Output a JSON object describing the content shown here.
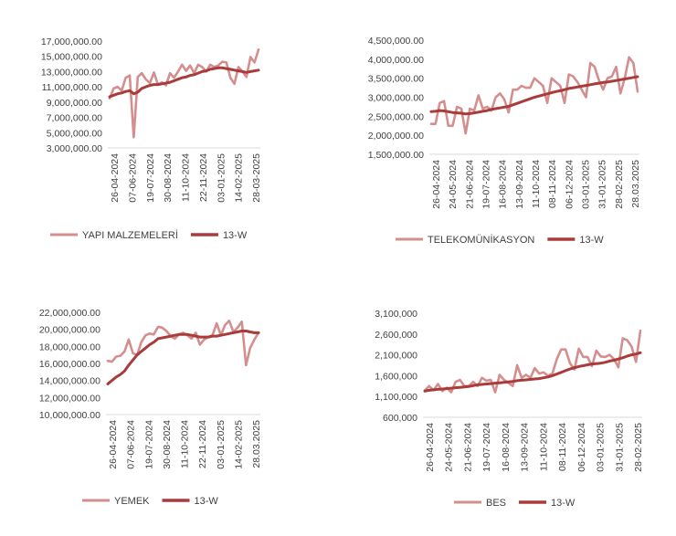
{
  "colors": {
    "series_light": "#d48e8e",
    "series_dark": "#a93b3b",
    "axis": "#d9d9d9",
    "text": "#404040"
  },
  "chart_data": [
    {
      "type": "line",
      "title": "",
      "xlabel": "",
      "ylabel": "",
      "ylim": [
        3000000,
        17000000
      ],
      "yticks": [
        "17,000,000.00",
        "15,000,000.00",
        "13,000,000.00",
        "11,000,000.00",
        "9,000,000.00",
        "7,000,000.00",
        "5,000,000.00",
        "3,000,000.00"
      ],
      "xticks": [
        "26-04-2024",
        "07-06-2024",
        "19-07-2024",
        "30-08-2024",
        "11-10-2024",
        "22-11-2024",
        "03-01-2025",
        "14-02-2025",
        "28-03-2025"
      ],
      "grid": false,
      "legend": "bottom",
      "series": [
        {
          "name": "YAPI MALZEMELERİ",
          "color": "#d48e8e",
          "values": [
            9500000,
            10800000,
            11000000,
            10500000,
            12200000,
            12500000,
            4400000,
            12300000,
            12800000,
            12000000,
            11500000,
            12900000,
            11300000,
            11600000,
            11200000,
            12800000,
            12200000,
            13000000,
            13900000,
            13100000,
            13800000,
            12800000,
            13900000,
            13600000,
            13000000,
            13900000,
            13600000,
            13800000,
            14300000,
            14200000,
            12200000,
            11400000,
            13600000,
            13000000,
            12300000,
            14900000,
            14200000,
            15900000
          ]
        },
        {
          "name": "13-W",
          "color": "#a93b3b",
          "values": [
            9700000,
            9900000,
            10100000,
            10200000,
            10400000,
            10500000,
            10100000,
            10300000,
            10800000,
            11000000,
            11200000,
            11300000,
            11300000,
            11400000,
            11500000,
            11600000,
            11800000,
            12000000,
            12200000,
            12300000,
            12500000,
            12600000,
            12800000,
            13000000,
            13100000,
            13300000,
            13400000,
            13500000,
            13500000,
            13400000,
            13300000,
            13200000,
            13100000,
            13000000,
            12900000,
            13000000,
            13100000,
            13200000
          ]
        }
      ]
    },
    {
      "type": "line",
      "title": "",
      "xlabel": "",
      "ylabel": "",
      "ylim": [
        1500000,
        4500000
      ],
      "yticks": [
        "4,500,000.00",
        "4,000,000.00",
        "3,500,000.00",
        "3,000,000.00",
        "2,500,000.00",
        "2,000,000.00",
        "1,500,000.00"
      ],
      "xticks": [
        "26-04-2024",
        "24-05-2024",
        "21-06-2024",
        "19-07-2024",
        "16-08-2024",
        "13-09-2024",
        "11-10-2024",
        "08-11-2024",
        "06-12-2024",
        "03-01-2025",
        "31-01-2025",
        "28-02-2025",
        "28.03.2025"
      ],
      "grid": false,
      "legend": "bottom",
      "series": [
        {
          "name": "TELEKOMÜNİKASYON",
          "color": "#d48e8e",
          "values": [
            2300000,
            2300000,
            2850000,
            2900000,
            2250000,
            2250000,
            2750000,
            2700000,
            2050000,
            2700000,
            2650000,
            3050000,
            2700000,
            2750000,
            2650000,
            3000000,
            3100000,
            2950000,
            2600000,
            3200000,
            3200000,
            3300000,
            3250000,
            3250000,
            3500000,
            3400000,
            3300000,
            2850000,
            3500000,
            3400000,
            3300000,
            2850000,
            3600000,
            3550000,
            3400000,
            3200000,
            3000000,
            3900000,
            3800000,
            3450000,
            3200000,
            3500000,
            3550000,
            3800000,
            3100000,
            3500000,
            4050000,
            3900000,
            3150000
          ]
        },
        {
          "name": "13-W",
          "color": "#a93b3b",
          "values": [
            2620000,
            2630000,
            2650000,
            2640000,
            2620000,
            2600000,
            2590000,
            2580000,
            2560000,
            2570000,
            2590000,
            2610000,
            2630000,
            2650000,
            2680000,
            2700000,
            2720000,
            2740000,
            2760000,
            2800000,
            2840000,
            2880000,
            2920000,
            2960000,
            3000000,
            3030000,
            3060000,
            3090000,
            3120000,
            3150000,
            3170000,
            3200000,
            3230000,
            3250000,
            3270000,
            3290000,
            3310000,
            3330000,
            3350000,
            3370000,
            3390000,
            3400000,
            3420000,
            3440000,
            3460000,
            3480000,
            3500000,
            3520000,
            3540000
          ]
        }
      ]
    },
    {
      "type": "line",
      "title": "",
      "xlabel": "",
      "ylabel": "",
      "ylim": [
        10000000,
        22000000
      ],
      "yticks": [
        "22,000,000.00",
        "20,000,000.00",
        "18,000,000.00",
        "16,000,000.00",
        "14,000,000.00",
        "12,000,000.00",
        "10,000,000.00"
      ],
      "xticks": [
        "26-04-2024",
        "07-06-2024",
        "19-07-2024",
        "30-08-2024",
        "11-10-2024",
        "22-11-2024",
        "03-01-2025",
        "14-02-2025",
        "28.03.2025"
      ],
      "grid": false,
      "legend": "bottom",
      "series": [
        {
          "name": "YEMEK",
          "color": "#d48e8e",
          "values": [
            16300000,
            16200000,
            16800000,
            16900000,
            17400000,
            18800000,
            17200000,
            17000000,
            18500000,
            19300000,
            19500000,
            19400000,
            20300000,
            20200000,
            19800000,
            19200000,
            18900000,
            19400000,
            19600000,
            19300000,
            18900000,
            19600000,
            18200000,
            18800000,
            19100000,
            19300000,
            20700000,
            19300000,
            20500000,
            21000000,
            19700000,
            20200000,
            20900000,
            15800000,
            17800000,
            18800000,
            19600000
          ]
        },
        {
          "name": "13-W",
          "color": "#a93b3b",
          "values": [
            13600000,
            14000000,
            14400000,
            14700000,
            15100000,
            15800000,
            16400000,
            17000000,
            17400000,
            17800000,
            18200000,
            18500000,
            18900000,
            19000000,
            19100000,
            19200000,
            19300000,
            19400000,
            19400000,
            19400000,
            19300000,
            19200000,
            19100000,
            19100000,
            19100000,
            19200000,
            19200000,
            19300000,
            19400000,
            19500000,
            19600000,
            19700000,
            19800000,
            19800000,
            19700000,
            19600000,
            19600000
          ]
        }
      ]
    },
    {
      "type": "line",
      "title": "",
      "xlabel": "",
      "ylabel": "",
      "ylim": [
        600000,
        3100000
      ],
      "yticks": [
        "3,100,000",
        "2,600,000",
        "2,100,000",
        "1,600,000",
        "1,100,000",
        "600,000"
      ],
      "xticks": [
        "26-04-2024",
        "24-05-2024",
        "21-06-2024",
        "19-07-2024",
        "16-08-2024",
        "13-09-2024",
        "11-10-2024",
        "08-11-2024",
        "06-12-2024",
        "03-01-2025",
        "31-01-2025",
        "28-02-2025"
      ],
      "grid": false,
      "legend": "bottom",
      "series": [
        {
          "name": "BES",
          "color": "#d48e8e",
          "values": [
            1250000,
            1350000,
            1250000,
            1400000,
            1230000,
            1310000,
            1200000,
            1450000,
            1500000,
            1350000,
            1350000,
            1450000,
            1350000,
            1550000,
            1480000,
            1500000,
            1200000,
            1620000,
            1500000,
            1430000,
            1350000,
            1850000,
            1550000,
            1620000,
            1550000,
            1780000,
            1650000,
            1680000,
            1600000,
            1650000,
            2000000,
            2230000,
            2230000,
            1900000,
            1750000,
            2250000,
            2050000,
            2050000,
            1830000,
            2200000,
            2060000,
            2050000,
            2100000,
            2000000,
            1800000,
            2500000,
            2450000,
            2300000,
            1930000,
            2680000
          ]
        },
        {
          "name": "13-W",
          "color": "#a93b3b",
          "values": [
            1230000,
            1250000,
            1260000,
            1270000,
            1280000,
            1290000,
            1300000,
            1310000,
            1320000,
            1330000,
            1340000,
            1360000,
            1380000,
            1390000,
            1400000,
            1410000,
            1420000,
            1430000,
            1440000,
            1450000,
            1460000,
            1480000,
            1490000,
            1500000,
            1510000,
            1520000,
            1530000,
            1550000,
            1570000,
            1600000,
            1640000,
            1680000,
            1720000,
            1760000,
            1790000,
            1820000,
            1840000,
            1860000,
            1880000,
            1890000,
            1900000,
            1920000,
            1950000,
            1970000,
            2000000,
            2030000,
            2070000,
            2100000,
            2120000,
            2150000
          ]
        }
      ]
    }
  ]
}
